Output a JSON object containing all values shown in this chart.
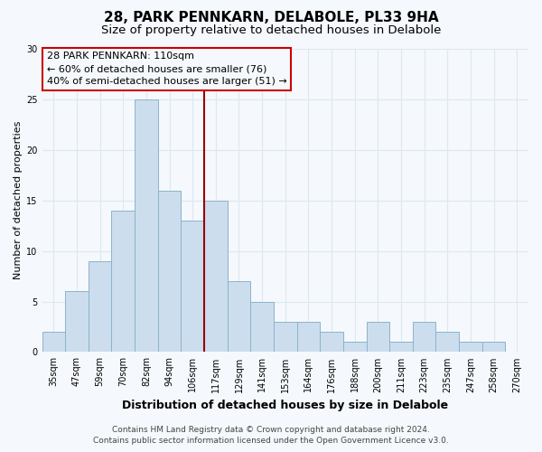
{
  "title": "28, PARK PENNKARN, DELABOLE, PL33 9HA",
  "subtitle": "Size of property relative to detached houses in Delabole",
  "xlabel": "Distribution of detached houses by size in Delabole",
  "ylabel": "Number of detached properties",
  "bar_labels": [
    "35sqm",
    "47sqm",
    "59sqm",
    "70sqm",
    "82sqm",
    "94sqm",
    "106sqm",
    "117sqm",
    "129sqm",
    "141sqm",
    "153sqm",
    "164sqm",
    "176sqm",
    "188sqm",
    "200sqm",
    "211sqm",
    "223sqm",
    "235sqm",
    "247sqm",
    "258sqm",
    "270sqm"
  ],
  "bar_values": [
    2,
    6,
    9,
    14,
    25,
    16,
    13,
    15,
    7,
    5,
    3,
    3,
    2,
    1,
    3,
    1,
    3,
    2,
    1,
    1,
    0
  ],
  "bar_color": "#ccdded",
  "bar_edgecolor": "#8ab4cc",
  "vline_color": "#990000",
  "vline_xidx": 6,
  "ylim": [
    0,
    30
  ],
  "yticks": [
    0,
    5,
    10,
    15,
    20,
    25,
    30
  ],
  "annotation_title": "28 PARK PENNKARN: 110sqm",
  "annotation_line1": "← 60% of detached houses are smaller (76)",
  "annotation_line2": "40% of semi-detached houses are larger (51) →",
  "annotation_box_edgecolor": "#cc0000",
  "footer_line1": "Contains HM Land Registry data © Crown copyright and database right 2024.",
  "footer_line2": "Contains public sector information licensed under the Open Government Licence v3.0.",
  "background_color": "#f5f8fc",
  "plot_bg_color": "#f5f8fc",
  "grid_color": "#dce8f0",
  "title_fontsize": 11,
  "subtitle_fontsize": 9.5,
  "xlabel_fontsize": 9,
  "ylabel_fontsize": 8,
  "tick_fontsize": 7,
  "annotation_fontsize": 8,
  "footer_fontsize": 6.5
}
